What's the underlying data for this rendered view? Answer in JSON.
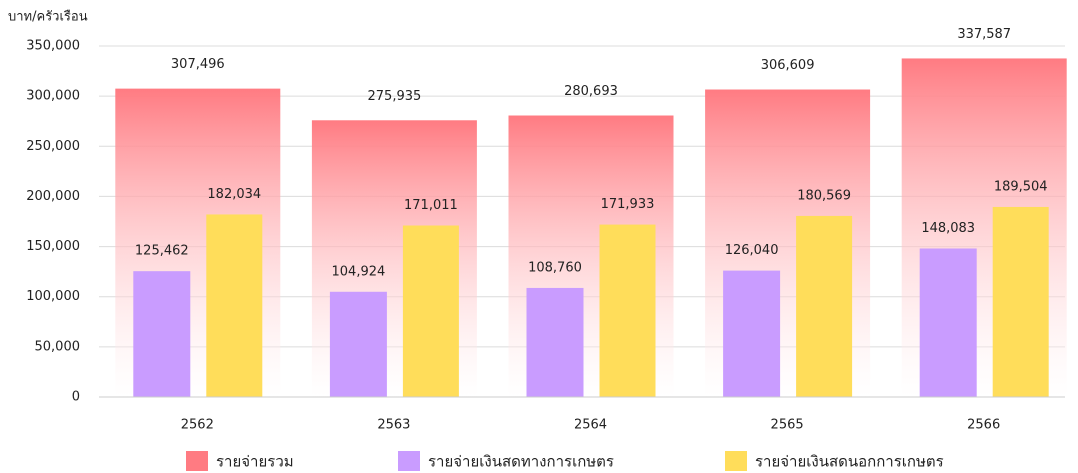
{
  "chart_data": {
    "type": "bar",
    "y_label": "บาท/ครัวเรือน",
    "categories": [
      "2562",
      "2563",
      "2564",
      "2565",
      "2566"
    ],
    "series": [
      {
        "name": "รายจ่ายรวม",
        "color": "#ff7b82",
        "values": [
          307496,
          275935,
          280693,
          306609,
          337587
        ],
        "value_labels": [
          "307,496",
          "275,935",
          "280,693",
          "306,609",
          "337,587"
        ]
      },
      {
        "name": "รายจ่ายเงินสดทางการเกษตร",
        "color": "#c99cff",
        "values": [
          125462,
          104924,
          108760,
          126040,
          148083
        ],
        "value_labels": [
          "125,462",
          "104,924",
          "108,760",
          "126,040",
          "148,083"
        ]
      },
      {
        "name": "รายจ่ายเงินสดนอกการเกษตร",
        "color": "#ffdd5a",
        "values": [
          182034,
          171011,
          171933,
          180569,
          189504
        ],
        "value_labels": [
          "182,034",
          "171,011",
          "171,933",
          "180,569",
          "189,504"
        ]
      }
    ],
    "ylim": [
      0,
      350000
    ],
    "yticks": [
      0,
      {
        "value": 50000,
        "label": "50,000"
      },
      {
        "value": 100000,
        "label": "100,000"
      },
      {
        "value": 150000,
        "label": "150,000"
      },
      {
        "value": 200000,
        "label": "200,000"
      },
      {
        "value": 250000,
        "label": "250,000"
      },
      {
        "value": 300000,
        "label": "300,000"
      },
      {
        "value": 350000,
        "label": "350,000"
      }
    ],
    "grid": true
  }
}
